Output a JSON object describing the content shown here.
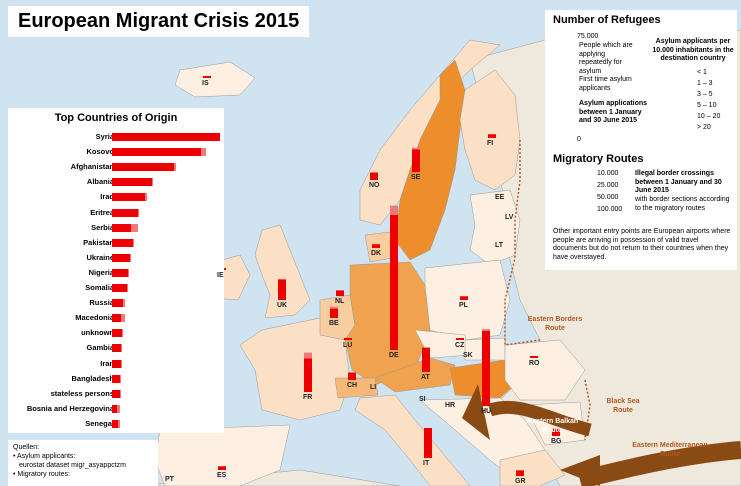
{
  "title": "European Migrant Crisis 2015",
  "origins": {
    "title": "Top Countries of Origin",
    "items": [
      {
        "label": "Syria",
        "value": 100,
        "repeat": 0
      },
      {
        "label": "Kosovo",
        "value": 82,
        "repeat": 5
      },
      {
        "label": "Afghanistan",
        "value": 57,
        "repeat": 2
      },
      {
        "label": "Albania",
        "value": 37,
        "repeat": 1
      },
      {
        "label": "Iraq",
        "value": 31,
        "repeat": 1
      },
      {
        "label": "Eritrea",
        "value": 24,
        "repeat": 1
      },
      {
        "label": "Serbia",
        "value": 18,
        "repeat": 6
      },
      {
        "label": "Pakistan",
        "value": 19,
        "repeat": 1
      },
      {
        "label": "Ukraine",
        "value": 17,
        "repeat": 1
      },
      {
        "label": "Nigeria",
        "value": 15,
        "repeat": 1
      },
      {
        "label": "Somalia",
        "value": 14,
        "repeat": 1
      },
      {
        "label": "Russia",
        "value": 10,
        "repeat": 2
      },
      {
        "label": "Macedonia",
        "value": 8,
        "repeat": 4
      },
      {
        "label": "unknown",
        "value": 9,
        "repeat": 1
      },
      {
        "label": "Gambia",
        "value": 8,
        "repeat": 1
      },
      {
        "label": "Iran",
        "value": 8,
        "repeat": 1
      },
      {
        "label": "Bangladesh",
        "value": 7,
        "repeat": 1
      },
      {
        "label": "stateless persons",
        "value": 7,
        "repeat": 1
      },
      {
        "label": "Bosnia and Herzegovina",
        "value": 5,
        "repeat": 2
      },
      {
        "label": "Senegal",
        "value": 6,
        "repeat": 1
      }
    ]
  },
  "sources": {
    "heading": "Quellen:",
    "line1": "• Asylum applicants:",
    "line2": "eurostat dataset migr_asyappctzm",
    "line3": "• Migratory routes:"
  },
  "legend": {
    "refugees_title": "Number of Refugees",
    "scale_top": "75.000",
    "scale_bottom": "0",
    "repeat_text": "People which are applying repeatedly for asylum",
    "first_time_text": "First time asylum applicants",
    "applications_text": "Asylum applications between 1 January and 30 June 2015",
    "per_capita_title": "Asylum applicants per 10.000 inhabitants in the destination country",
    "classes": [
      {
        "label": "< 1",
        "color": "#fdf0e2"
      },
      {
        "label": "1 – 3",
        "color": "#fbe0c6"
      },
      {
        "label": "3 – 5",
        "color": "#f8cda0"
      },
      {
        "label": "5 – 10",
        "color": "#f5b877"
      },
      {
        "label": "10 – 20",
        "color": "#f1a24f"
      },
      {
        "label": "> 20",
        "color": "#ed8d2b"
      }
    ],
    "routes_title": "Migratory Routes",
    "route_values": [
      "10.000",
      "25.000",
      "50.000",
      "100.000"
    ],
    "crossings_text": "Illegal border crossings between 1 January and 30 June 2015",
    "sections_text": "with border sections according to the migratory routes",
    "airports_text": "Other important entry points are European airports where people are arriving in possession of valid travel documents but do not return to their countries when they have overstayed."
  },
  "routes": {
    "eastern_borders": "Eastern Borders Route",
    "black_sea": "Black Sea Route",
    "western_balkan": "Western Balkan Route",
    "eastern_med": "Eastern Mediterranean Route"
  },
  "countries": [
    {
      "code": "IS",
      "first": 1,
      "repeat": 0
    },
    {
      "code": "NO",
      "first": 4,
      "repeat": 0
    },
    {
      "code": "SE",
      "first": 12,
      "repeat": 1
    },
    {
      "code": "FI",
      "first": 2,
      "repeat": 0
    },
    {
      "code": "EE",
      "first": 0,
      "repeat": 0
    },
    {
      "code": "LV",
      "first": 0,
      "repeat": 0
    },
    {
      "code": "LT",
      "first": 0,
      "repeat": 0
    },
    {
      "code": "DK",
      "first": 2,
      "repeat": 0
    },
    {
      "code": "IE",
      "first": 1,
      "repeat": 0
    },
    {
      "code": "UK",
      "first": 11,
      "repeat": 0
    },
    {
      "code": "NL",
      "first": 3,
      "repeat": 0
    },
    {
      "code": "BE",
      "first": 5,
      "repeat": 1
    },
    {
      "code": "LU",
      "first": 1,
      "repeat": 0
    },
    {
      "code": "DE",
      "first": 72,
      "repeat": 5
    },
    {
      "code": "PL",
      "first": 2,
      "repeat": 0
    },
    {
      "code": "CZ",
      "first": 1,
      "repeat": 0
    },
    {
      "code": "SK",
      "first": 0,
      "repeat": 0
    },
    {
      "code": "AT",
      "first": 13,
      "repeat": 0
    },
    {
      "code": "HU",
      "first": 40,
      "repeat": 1
    },
    {
      "code": "FR",
      "first": 18,
      "repeat": 3
    },
    {
      "code": "CH",
      "first": 4,
      "repeat": 0
    },
    {
      "code": "LI",
      "first": 0,
      "repeat": 0
    },
    {
      "code": "SI",
      "first": 0,
      "repeat": 0
    },
    {
      "code": "HR",
      "first": 0,
      "repeat": 0
    },
    {
      "code": "RO",
      "first": 1,
      "repeat": 0
    },
    {
      "code": "BG",
      "first": 4,
      "repeat": 0
    },
    {
      "code": "IT",
      "first": 16,
      "repeat": 0
    },
    {
      "code": "GR",
      "first": 3,
      "repeat": 0
    },
    {
      "code": "ES",
      "first": 2,
      "repeat": 0
    },
    {
      "code": "PT",
      "first": 0,
      "repeat": 0
    }
  ]
}
